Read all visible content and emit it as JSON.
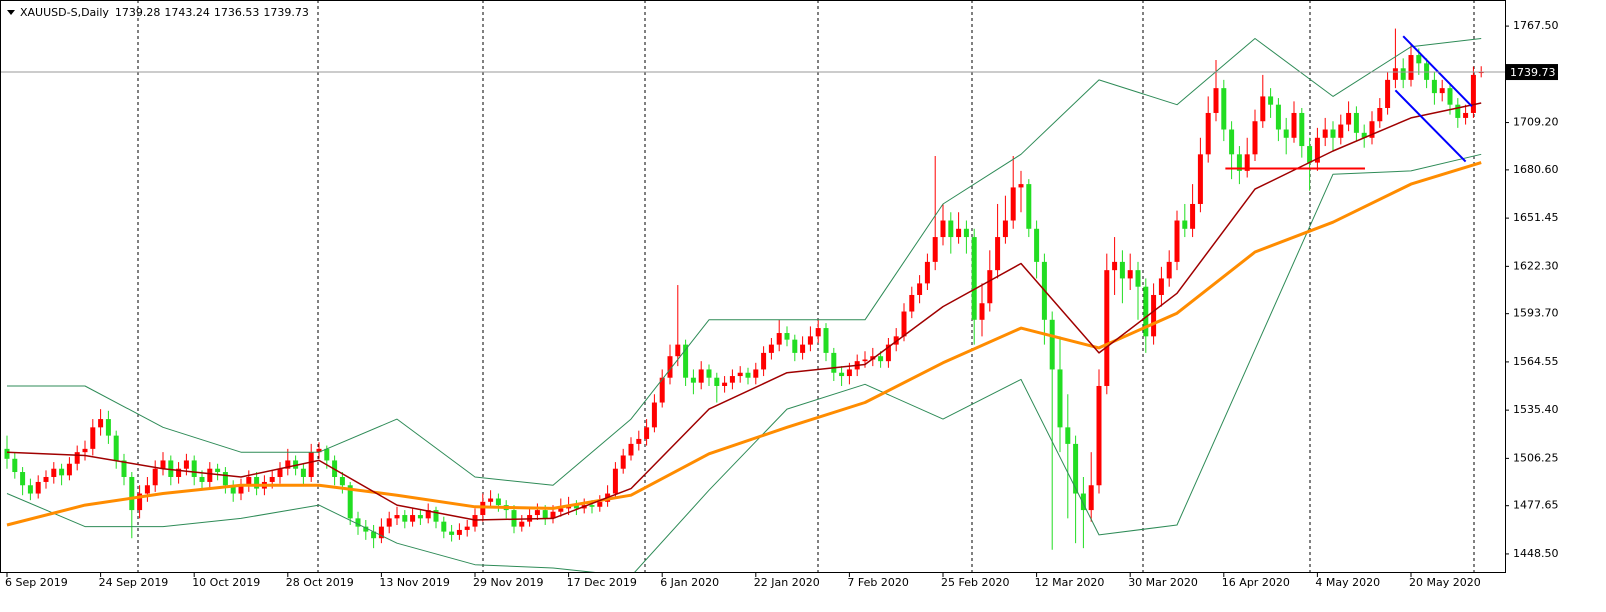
{
  "chart_data": {
    "type": "candlestick",
    "title": "XAUUSD-S,Daily",
    "up_color": "#ff0000",
    "down_color": "#22dd22",
    "categories": [
      "6 Sep 2019",
      null,
      null,
      null,
      null,
      null,
      null,
      null,
      null,
      null,
      null,
      null,
      "24 Sep 2019",
      null,
      null,
      null,
      null,
      null,
      null,
      null,
      null,
      null,
      null,
      null,
      "10 Oct 2019",
      null,
      null,
      null,
      null,
      null,
      null,
      null,
      null,
      null,
      null,
      null,
      "28 Oct 2019",
      null,
      null,
      null,
      null,
      null,
      null,
      null,
      null,
      null,
      null,
      null,
      "13 Nov 2019",
      null,
      null,
      null,
      null,
      null,
      null,
      null,
      null,
      null,
      null,
      null,
      "29 Nov 2019",
      null,
      null,
      null,
      null,
      null,
      null,
      null,
      null,
      null,
      null,
      null,
      "17 Dec 2019",
      null,
      null,
      null,
      null,
      null,
      null,
      null,
      null,
      null,
      null,
      null,
      "6 Jan 2020",
      null,
      null,
      null,
      null,
      null,
      null,
      null,
      null,
      null,
      null,
      null,
      "22 Jan 2020",
      null,
      null,
      null,
      null,
      null,
      null,
      null,
      null,
      null,
      null,
      null,
      "7 Feb 2020",
      null,
      null,
      null,
      null,
      null,
      null,
      null,
      null,
      null,
      null,
      null,
      "25 Feb 2020",
      null,
      null,
      null,
      null,
      null,
      null,
      null,
      null,
      null,
      null,
      null,
      "12 Mar 2020",
      null,
      null,
      null,
      null,
      null,
      null,
      null,
      null,
      null,
      null,
      null,
      "30 Mar 2020",
      null,
      null,
      null,
      null,
      null,
      null,
      null,
      null,
      null,
      null,
      null,
      "16 Apr 2020",
      null,
      null,
      null,
      null,
      null,
      null,
      null,
      null,
      null,
      null,
      null,
      "4 May 2020",
      null,
      null,
      null,
      null,
      null,
      null,
      null,
      null,
      null,
      null,
      null,
      "20 May 2020",
      null,
      null,
      null,
      null,
      null,
      null,
      null,
      null,
      null
    ],
    "open": [
      1512,
      1506,
      1498,
      1490,
      1485,
      1492,
      1495,
      1500,
      1496,
      1503,
      1510,
      1512,
      1525,
      1530,
      1520,
      1505,
      1495,
      1475,
      1485,
      1490,
      1500,
      1505,
      1495,
      1500,
      1505,
      1495,
      1492,
      1500,
      1498,
      1490,
      1485,
      1490,
      1495,
      1488,
      1492,
      1495,
      1500,
      1505,
      1500,
      1495,
      1510,
      1512,
      1505,
      1495,
      1490,
      1470,
      1465,
      1462,
      1458,
      1465,
      1470,
      1472,
      1468,
      1472,
      1470,
      1475,
      1468,
      1462,
      1460,
      1463,
      1465,
      1472,
      1480,
      1482,
      1478,
      1475,
      1465,
      1468,
      1472,
      1475,
      1470,
      1474,
      1476,
      1478,
      1476,
      1478,
      1477,
      1480,
      1485,
      1500,
      1508,
      1515,
      1518,
      1525,
      1540,
      1555,
      1568,
      1575,
      1555,
      1552,
      1560,
      1555,
      1550,
      1552,
      1556,
      1558,
      1555,
      1560,
      1570,
      1575,
      1582,
      1578,
      1570,
      1575,
      1580,
      1585,
      1570,
      1558,
      1556,
      1560,
      1565,
      1566,
      1568,
      1565,
      1575,
      1580,
      1595,
      1605,
      1612,
      1625,
      1640,
      1650,
      1640,
      1645,
      1640,
      1590,
      1600,
      1620,
      1640,
      1650,
      1670,
      1672,
      1645,
      1625,
      1590,
      1560,
      1525,
      1515,
      1485,
      1475,
      1490,
      1550,
      1620,
      1625,
      1615,
      1620,
      1610,
      1580,
      1605,
      1615,
      1625,
      1650,
      1645,
      1660,
      1690,
      1715,
      1730,
      1705,
      1690,
      1680,
      1690,
      1710,
      1725,
      1720,
      1705,
      1700,
      1715,
      1695,
      1685,
      1700,
      1705,
      1700,
      1708,
      1715,
      1703,
      1700,
      1710,
      1718,
      1735,
      1742,
      1735,
      1750,
      1745,
      1735,
      1727,
      1730,
      1720,
      1712,
      1715,
      1739.28
    ],
    "high": [
      1520,
      1510,
      1501,
      1494,
      1496,
      1499,
      1504,
      1503,
      1507,
      1514,
      1517,
      1530,
      1536,
      1535,
      1523,
      1509,
      1498,
      1490,
      1495,
      1505,
      1510,
      1508,
      1504,
      1509,
      1508,
      1499,
      1504,
      1503,
      1501,
      1493,
      1494,
      1499,
      1498,
      1496,
      1499,
      1504,
      1512,
      1508,
      1503,
      1515,
      1516,
      1514,
      1508,
      1498,
      1492,
      1474,
      1469,
      1466,
      1470,
      1474,
      1477,
      1475,
      1476,
      1475,
      1479,
      1477,
      1471,
      1466,
      1467,
      1469,
      1476,
      1485,
      1487,
      1485,
      1481,
      1478,
      1472,
      1476,
      1479,
      1478,
      1478,
      1482,
      1483,
      1481,
      1482,
      1481,
      1484,
      1490,
      1504,
      1512,
      1519,
      1523,
      1530,
      1545,
      1560,
      1575,
      1611,
      1578,
      1560,
      1565,
      1563,
      1558,
      1556,
      1560,
      1562,
      1561,
      1564,
      1574,
      1579,
      1590,
      1586,
      1581,
      1580,
      1586,
      1590,
      1588,
      1573,
      1562,
      1564,
      1569,
      1571,
      1573,
      1571,
      1579,
      1585,
      1600,
      1610,
      1617,
      1630,
      1689,
      1660,
      1655,
      1655,
      1650,
      1645,
      1612,
      1632,
      1660,
      1665,
      1689,
      1680,
      1675,
      1650,
      1630,
      1595,
      1580,
      1545,
      1520,
      1495,
      1510,
      1560,
      1630,
      1640,
      1632,
      1630,
      1625,
      1615,
      1612,
      1622,
      1632,
      1656,
      1660,
      1672,
      1700,
      1725,
      1747,
      1735,
      1710,
      1695,
      1700,
      1717,
      1738,
      1730,
      1724,
      1712,
      1722,
      1718,
      1700,
      1706,
      1712,
      1710,
      1714,
      1722,
      1719,
      1708,
      1716,
      1724,
      1740,
      1766,
      1748,
      1756,
      1754,
      1748,
      1740,
      1735,
      1733,
      1724,
      1720,
      1743,
      1743.24
    ],
    "low": [
      1500,
      1494,
      1484,
      1481,
      1482,
      1488,
      1491,
      1490,
      1493,
      1499,
      1505,
      1508,
      1520,
      1515,
      1500,
      1490,
      1458,
      1470,
      1480,
      1486,
      1496,
      1490,
      1491,
      1496,
      1490,
      1487,
      1488,
      1493,
      1485,
      1480,
      1481,
      1486,
      1484,
      1484,
      1488,
      1491,
      1496,
      1496,
      1490,
      1492,
      1506,
      1500,
      1490,
      1485,
      1466,
      1460,
      1457,
      1452,
      1455,
      1461,
      1466,
      1464,
      1465,
      1466,
      1467,
      1464,
      1458,
      1456,
      1457,
      1459,
      1462,
      1468,
      1476,
      1474,
      1470,
      1461,
      1462,
      1465,
      1469,
      1466,
      1467,
      1471,
      1472,
      1472,
      1473,
      1473,
      1474,
      1477,
      1482,
      1497,
      1505,
      1511,
      1514,
      1522,
      1537,
      1551,
      1562,
      1550,
      1545,
      1548,
      1550,
      1540,
      1546,
      1548,
      1552,
      1551,
      1551,
      1556,
      1566,
      1571,
      1574,
      1565,
      1566,
      1571,
      1576,
      1565,
      1553,
      1550,
      1551,
      1556,
      1561,
      1562,
      1561,
      1561,
      1571,
      1577,
      1591,
      1600,
      1608,
      1620,
      1635,
      1630,
      1636,
      1630,
      1575,
      1580,
      1595,
      1615,
      1636,
      1645,
      1655,
      1640,
      1615,
      1575,
      1451,
      1510,
      1470,
      1455,
      1452,
      1468,
      1485,
      1545,
      1605,
      1600,
      1608,
      1590,
      1570,
      1575,
      1598,
      1610,
      1620,
      1640,
      1640,
      1655,
      1685,
      1710,
      1698,
      1675,
      1672,
      1676,
      1686,
      1706,
      1712,
      1698,
      1690,
      1697,
      1688,
      1668,
      1680,
      1695,
      1692,
      1696,
      1704,
      1698,
      1694,
      1696,
      1706,
      1714,
      1730,
      1730,
      1731,
      1738,
      1730,
      1720,
      1722,
      1714,
      1706,
      1708,
      1712,
      1736.53
    ],
    "close": [
      1506,
      1498,
      1490,
      1485,
      1492,
      1495,
      1500,
      1496,
      1503,
      1510,
      1512,
      1525,
      1530,
      1520,
      1505,
      1495,
      1475,
      1485,
      1490,
      1500,
      1505,
      1495,
      1500,
      1505,
      1495,
      1492,
      1500,
      1498,
      1490,
      1485,
      1490,
      1495,
      1488,
      1492,
      1495,
      1500,
      1505,
      1500,
      1495,
      1510,
      1512,
      1505,
      1495,
      1490,
      1470,
      1465,
      1462,
      1458,
      1465,
      1470,
      1472,
      1468,
      1472,
      1470,
      1475,
      1468,
      1462,
      1460,
      1463,
      1465,
      1472,
      1480,
      1482,
      1478,
      1475,
      1465,
      1468,
      1472,
      1475,
      1470,
      1474,
      1476,
      1478,
      1476,
      1478,
      1477,
      1480,
      1485,
      1500,
      1508,
      1515,
      1518,
      1525,
      1540,
      1555,
      1568,
      1575,
      1555,
      1552,
      1560,
      1555,
      1550,
      1552,
      1556,
      1558,
      1555,
      1560,
      1570,
      1575,
      1582,
      1578,
      1570,
      1575,
      1580,
      1585,
      1570,
      1558,
      1556,
      1560,
      1565,
      1566,
      1568,
      1565,
      1575,
      1580,
      1595,
      1605,
      1612,
      1625,
      1640,
      1650,
      1640,
      1645,
      1640,
      1590,
      1600,
      1620,
      1640,
      1650,
      1670,
      1672,
      1645,
      1625,
      1590,
      1560,
      1525,
      1515,
      1485,
      1475,
      1490,
      1550,
      1620,
      1625,
      1615,
      1620,
      1610,
      1580,
      1605,
      1615,
      1625,
      1650,
      1645,
      1660,
      1690,
      1715,
      1730,
      1705,
      1690,
      1680,
      1690,
      1710,
      1725,
      1720,
      1705,
      1700,
      1715,
      1695,
      1685,
      1700,
      1705,
      1700,
      1708,
      1715,
      1703,
      1700,
      1710,
      1718,
      1735,
      1742,
      1735,
      1750,
      1745,
      1735,
      1727,
      1730,
      1720,
      1712,
      1715,
      1738,
      1739.73
    ],
    "indicators": [
      {
        "color": "#2e8b57",
        "width": 1,
        "x": [
          0,
          10,
          20,
          30,
          40,
          50,
          60,
          70,
          80,
          90,
          100,
          110,
          120,
          130,
          140,
          150,
          160,
          170,
          180,
          189
        ],
        "values": [
          1550,
          1550,
          1525,
          1510,
          1510,
          1530,
          1495,
          1490,
          1530,
          1590,
          1590,
          1590,
          1660,
          1690,
          1735,
          1720,
          1760,
          1725,
          1755,
          1760
        ]
      },
      {
        "color": "#2e8b57",
        "width": 1,
        "x": [
          0,
          10,
          20,
          30,
          40,
          50,
          60,
          70,
          80,
          90,
          100,
          110,
          120,
          130,
          140,
          150,
          160,
          170,
          180,
          189
        ],
        "values": [
          1485,
          1465,
          1465,
          1470,
          1478,
          1455,
          1442,
          1440,
          1435,
          1487,
          1536,
          1551,
          1530,
          1554,
          1460,
          1466,
          1572,
          1678,
          1680,
          1690
        ]
      },
      {
        "color": "#ff8c00",
        "width": 3,
        "x": [
          0,
          10,
          20,
          30,
          40,
          50,
          60,
          70,
          80,
          90,
          100,
          110,
          120,
          130,
          140,
          150,
          160,
          170,
          180,
          189
        ],
        "values": [
          1466,
          1478,
          1485,
          1490,
          1490,
          1484,
          1477,
          1476,
          1484,
          1509,
          1525,
          1540,
          1564,
          1585,
          1573,
          1594,
          1631,
          1649,
          1672,
          1685
        ]
      },
      {
        "color": "#a00000",
        "width": 1.5,
        "x": [
          0,
          10,
          20,
          30,
          40,
          50,
          60,
          70,
          80,
          90,
          100,
          110,
          120,
          130,
          140,
          150,
          160,
          170,
          180,
          189
        ],
        "values": [
          1510,
          1508,
          1500,
          1495,
          1505,
          1478,
          1469,
          1470,
          1488,
          1536,
          1558,
          1563,
          1598,
          1624,
          1570,
          1606,
          1669,
          1692,
          1712,
          1721
        ]
      }
    ],
    "trendlines": [
      {
        "color": "#0000ff",
        "x": [
          179,
          187.8
        ],
        "y": [
          1761.4,
          1719
        ]
      },
      {
        "color": "#0000ff",
        "x": [
          178,
          187
        ],
        "y": [
          1728.7,
          1685.6
        ]
      },
      {
        "color": "#ff0000",
        "x": [
          156.2,
          174.1
        ],
        "y": [
          1681.4,
          1681.4
        ]
      }
    ],
    "ylim": [
      1437.58,
      1783.27
    ],
    "yticks": [
      {
        "value": 1767.5,
        "label": "1767.50"
      },
      {
        "value": 1709.2,
        "label": "1709.20"
      },
      {
        "value": 1680.6,
        "label": "1680.60"
      },
      1651.45,
      {
        "value": 1622.3,
        "label": "1622.30"
      },
      {
        "value": 1593.7,
        "label": "1593.70"
      },
      1564.55,
      {
        "value": 1535.4,
        "label": "1535.40"
      },
      1506.25,
      1477.65,
      {
        "value": 1448.5,
        "label": "1448.50"
      }
    ]
  }
}
